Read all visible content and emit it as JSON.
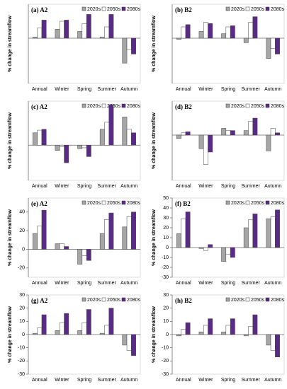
{
  "chart_data": [
    {
      "type": "bar",
      "title": "(a) A2",
      "ylabel": "% change in streamflow",
      "categories": [
        "Annual",
        "Winter",
        "Spring",
        "Summer",
        "Autumn"
      ],
      "series": [
        {
          "name": "2020s",
          "color": "#a6a6a6",
          "values": [
            0.5,
            4,
            3,
            0.5,
            -11
          ]
        },
        {
          "name": "2050s",
          "color": "#ffffff",
          "values": [
            4.5,
            7.5,
            6.5,
            5,
            -5
          ]
        },
        {
          "name": "2080s",
          "color": "#5b2a86",
          "values": [
            8,
            8,
            10.5,
            10.5,
            -7
          ]
        }
      ],
      "ylim": [
        -20,
        15
      ]
    },
    {
      "type": "bar",
      "title": "(b) B2",
      "ylabel": "% change in streamflow",
      "categories": [
        "Annual",
        "Winter",
        "Spring",
        "Summer",
        "Autumn"
      ],
      "series": [
        {
          "name": "2020s",
          "color": "#a6a6a6",
          "values": [
            -0.5,
            3,
            2,
            -2,
            -9
          ]
        },
        {
          "name": "2050s",
          "color": "#ffffff",
          "values": [
            5,
            7,
            5,
            7,
            -4.5
          ]
        },
        {
          "name": "2080s",
          "color": "#5b2a86",
          "values": [
            6,
            6.5,
            5.5,
            9.5,
            -7
          ]
        }
      ],
      "ylim": [
        -20,
        15
      ]
    },
    {
      "type": "bar",
      "title": "(c) A2",
      "ylabel": "% change in streamflow",
      "categories": [
        "Annual",
        "Winter",
        "Spring",
        "Summer",
        "Autumn"
      ],
      "series": [
        {
          "name": "2020s",
          "color": "#a6a6a6",
          "values": [
            7,
            -3,
            -2,
            9,
            16
          ]
        },
        {
          "name": "2050s",
          "color": "#ffffff",
          "values": [
            8.5,
            -1,
            -1.5,
            13,
            9
          ]
        },
        {
          "name": "2080s",
          "color": "#5b2a86",
          "values": [
            9,
            -10,
            -6.5,
            23,
            7
          ]
        }
      ],
      "ylim": [
        -20,
        25
      ]
    },
    {
      "type": "bar",
      "title": "(d) B2",
      "ylabel": "% change in streamflow",
      "categories": [
        "Annual",
        "Winter",
        "Spring",
        "Summer",
        "Autumn"
      ],
      "series": [
        {
          "name": "2020s",
          "color": "#a6a6a6",
          "values": [
            -1.5,
            -6,
            3,
            2,
            -7
          ]
        },
        {
          "name": "2050s",
          "color": "#ffffff",
          "values": [
            1,
            -13,
            2,
            6,
            3
          ]
        },
        {
          "name": "2080s",
          "color": "#5b2a86",
          "values": [
            1.5,
            -7.5,
            2,
            7.5,
            1
          ]
        }
      ],
      "ylim": [
        -20,
        15
      ]
    },
    {
      "type": "bar",
      "title": "(e) A2",
      "ylabel": "% change in streamflow",
      "categories": [
        "Annual",
        "Winter",
        "Spring",
        "Summer",
        "Autumn"
      ],
      "series": [
        {
          "name": "2020s",
          "color": "#a6a6a6",
          "values": [
            17,
            6,
            -16,
            17,
            24
          ]
        },
        {
          "name": "2050s",
          "color": "#ffffff",
          "values": [
            25,
            6,
            -7,
            32,
            35
          ]
        },
        {
          "name": "2080s",
          "color": "#5b2a86",
          "values": [
            42,
            3,
            -12,
            39,
            40
          ]
        }
      ],
      "ylim": [
        -30,
        55
      ],
      "yticks": [
        -20,
        0,
        20,
        40
      ]
    },
    {
      "type": "bar",
      "title": "(f) B2",
      "ylabel": "% change in streamflow",
      "categories": [
        "Annual",
        "Winter",
        "Spring",
        "Summer",
        "Autumn"
      ],
      "series": [
        {
          "name": "2020s",
          "color": "#a6a6a6",
          "values": [
            14,
            -1,
            -14,
            20,
            29
          ]
        },
        {
          "name": "2050s",
          "color": "#ffffff",
          "values": [
            29,
            -3,
            -7,
            28,
            31
          ]
        },
        {
          "name": "2080s",
          "color": "#5b2a86",
          "values": [
            36,
            3,
            -10,
            34,
            38
          ]
        }
      ],
      "ylim": [
        -30,
        50
      ],
      "yticks": [
        -30,
        -20,
        -10,
        0,
        10,
        20,
        30,
        40,
        50
      ]
    },
    {
      "type": "bar",
      "title": "(g) A2",
      "ylabel": "% change in streamflow",
      "categories": [
        "Annual",
        "Winter",
        "Spring",
        "Summer",
        "Autumn"
      ],
      "series": [
        {
          "name": "2020s",
          "color": "#a6a6a6",
          "values": [
            1,
            3,
            3,
            1,
            -8
          ]
        },
        {
          "name": "2050s",
          "color": "#ffffff",
          "values": [
            5,
            9,
            9,
            7,
            -12
          ]
        },
        {
          "name": "2080s",
          "color": "#5b2a86",
          "values": [
            15,
            16,
            19,
            20,
            -16
          ]
        }
      ],
      "ylim": [
        -30,
        30
      ],
      "yticks": [
        -30,
        -20,
        -10,
        0,
        10,
        20,
        30
      ]
    },
    {
      "type": "bar",
      "title": "(h) B2",
      "ylabel": "% change in streamflow",
      "categories": [
        "Annual",
        "Winter",
        "Spring",
        "Summer",
        "Autumn"
      ],
      "series": [
        {
          "name": "2020s",
          "color": "#a6a6a6",
          "values": [
            -1,
            2,
            2,
            -1,
            -8
          ]
        },
        {
          "name": "2050s",
          "color": "#ffffff",
          "values": [
            4,
            7,
            7,
            6,
            -12
          ]
        },
        {
          "name": "2080s",
          "color": "#5b2a86",
          "values": [
            9,
            12,
            12,
            15,
            -17
          ]
        }
      ],
      "ylim": [
        -30,
        30
      ],
      "yticks": [
        -30,
        -20,
        -10,
        0,
        10,
        20,
        30
      ]
    }
  ]
}
